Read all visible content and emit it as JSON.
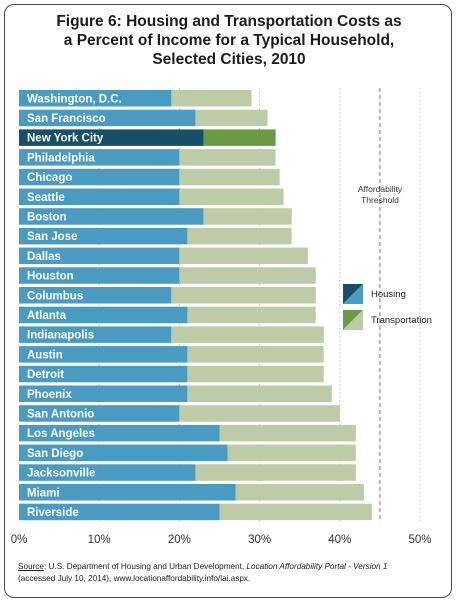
{
  "title_lines": [
    "Figure 6: Housing and Transportation Costs as",
    "a Percent of Income for a Typical Household,",
    "Selected Cities, 2010"
  ],
  "source": {
    "label": "Source",
    "text_a": ": U.S. Department of Housing and Urban Development, ",
    "portal": "Location Affordability Portal - Version 1",
    "text_b": "(accessed July 10, 2014), www.locationaffordability.info/lai.aspx."
  },
  "annotation": {
    "line1": "Affordability",
    "line2": "Threshold"
  },
  "colors": {
    "housing": "#4a9bc2",
    "transportation": "#bdcca6",
    "highlight_housing": "#174e68",
    "highlight_transportation": "#6a9a46",
    "threshold_line": "#9a9a9a",
    "background": "#ffffff"
  },
  "chart_data": {
    "type": "bar",
    "orientation": "horizontal",
    "stacked": true,
    "title": "Figure 6: Housing and Transportation Costs as a Percent of Income for a Typical Household, Selected Cities, 2010",
    "xlim": [
      0,
      50
    ],
    "x_ticks": [
      "0%",
      "10%",
      "20%",
      "30%",
      "40%",
      "50%"
    ],
    "x_tick_values": [
      0,
      10,
      20,
      30,
      40,
      50
    ],
    "threshold_value": 45,
    "highlight_category": "New York City",
    "legend": [
      {
        "name": "Housing",
        "key": "housing"
      },
      {
        "name": "Transportation",
        "key": "transportation"
      }
    ],
    "legend_position": "right",
    "categories": [
      "Washington, D.C.",
      "San Francisco",
      "New York City",
      "Philadelphia",
      "Chicago",
      "Seattle",
      "Boston",
      "San Jose",
      "Dallas",
      "Houston",
      "Columbus",
      "Atlanta",
      "Indianapolis",
      "Austin",
      "Detroit",
      "Phoenix",
      "San Antonio",
      "Los Angeles",
      "San Diego",
      "Jacksonville",
      "Miami",
      "Riverside"
    ],
    "series": [
      {
        "name": "Housing",
        "values": [
          19,
          22,
          23,
          20,
          20,
          20,
          23,
          21,
          20,
          20,
          19,
          21,
          19,
          21,
          21,
          21,
          20,
          25,
          26,
          22,
          27,
          25
        ]
      },
      {
        "name": "Transportation",
        "values": [
          10,
          9,
          9,
          12,
          12.5,
          13,
          11,
          13,
          16,
          17,
          18,
          16,
          19,
          17,
          17,
          18,
          20,
          17,
          16,
          20,
          16,
          19
        ]
      }
    ]
  }
}
